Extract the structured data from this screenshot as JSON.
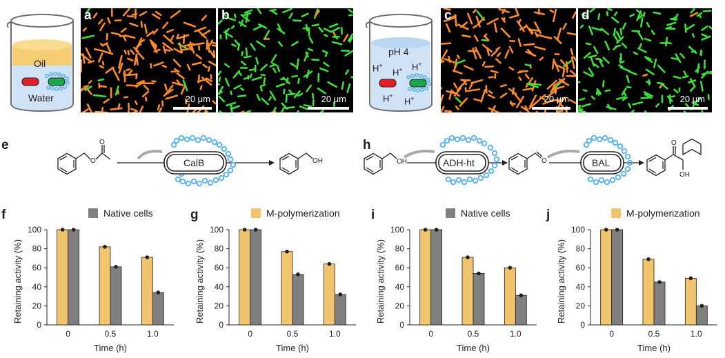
{
  "panels": {
    "a": "a",
    "b": "b",
    "c": "c",
    "d": "d",
    "e": "e",
    "f": "f",
    "g": "g",
    "h": "h",
    "i": "i",
    "j": "j"
  },
  "beaker1": {
    "oil": "Oil",
    "water": "Water"
  },
  "beaker2": {
    "ph": "pH 4",
    "proton": "H",
    "charge": "+"
  },
  "scale_bar": "20 μm",
  "scheme_e": {
    "enzyme": "CalB",
    "product_group": "OH"
  },
  "scheme_h": {
    "enzyme1": "ADH-ht",
    "enzyme2": "BAL",
    "substrate_group": "OH",
    "aldehyde_group": "O",
    "product_ketone": "O",
    "product_group": "OH"
  },
  "colors": {
    "m_polymerization": "#f0c56e",
    "native_cells": "#808080",
    "orange_cells": "#ff8c2a",
    "green_cells": "#3de03a",
    "brush": "#5fb3ee"
  },
  "chart_data": [
    {
      "type": "bar",
      "panel": "f",
      "legend": "Native cells",
      "legend_series": "native",
      "categories": [
        "0",
        "0.5",
        "1.0"
      ],
      "xlabel": "Time (h)",
      "ylabel": "Retaining activity (%)",
      "ylim": [
        0,
        100
      ],
      "yticks": [
        "0",
        "20",
        "40",
        "60",
        "80",
        "100"
      ],
      "series": [
        {
          "values": [
            100,
            82,
            71
          ]
        },
        {
          "values": [
            100,
            61,
            34
          ]
        }
      ]
    },
    {
      "type": "bar",
      "panel": "g",
      "legend": "M-polymerization",
      "legend_series": "m",
      "categories": [
        "0",
        "0.5",
        "1.0"
      ],
      "xlabel": "Time (h)",
      "ylabel": "Retaining activity (%)",
      "ylim": [
        0,
        100
      ],
      "yticks": [
        "0",
        "20",
        "40",
        "60",
        "80",
        "100"
      ],
      "series": [
        {
          "values": [
            100,
            77,
            64
          ]
        },
        {
          "values": [
            100,
            53,
            32
          ]
        }
      ]
    },
    {
      "type": "bar",
      "panel": "i",
      "legend": "Native cells",
      "legend_series": "native",
      "categories": [
        "0",
        "0.5",
        "1.0"
      ],
      "xlabel": "Time (h)",
      "ylabel": "Retaining activity (%)",
      "ylim": [
        0,
        100
      ],
      "yticks": [
        "0",
        "20",
        "40",
        "60",
        "80",
        "100"
      ],
      "series": [
        {
          "values": [
            100,
            71,
            60
          ]
        },
        {
          "values": [
            100,
            54,
            31
          ]
        }
      ]
    },
    {
      "type": "bar",
      "panel": "j",
      "legend": "M-polymerization",
      "legend_series": "m",
      "categories": [
        "0",
        "0.5",
        "1.0"
      ],
      "xlabel": "Time (h)",
      "ylabel": "Retaining activity (%)",
      "ylim": [
        0,
        100
      ],
      "yticks": [
        "0",
        "20",
        "40",
        "60",
        "80",
        "100"
      ],
      "series": [
        {
          "values": [
            100,
            69,
            49
          ]
        },
        {
          "values": [
            100,
            45,
            20
          ]
        }
      ]
    }
  ]
}
